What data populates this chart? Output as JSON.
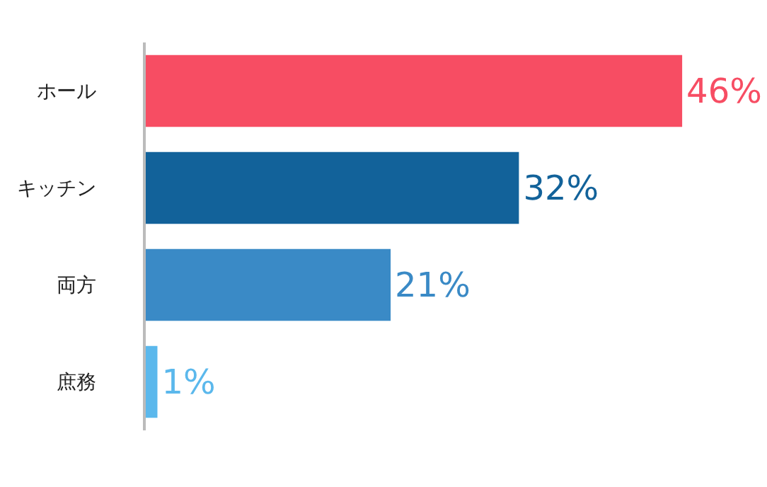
{
  "chart_data": {
    "type": "bar",
    "orientation": "horizontal",
    "categories": [
      "ホール",
      "キッチン",
      "両方",
      "庶務"
    ],
    "values": [
      46,
      32,
      21,
      1
    ],
    "colors": [
      "#f74d63",
      "#12629a",
      "#3a8ac6",
      "#5bb8ec"
    ],
    "value_labels": [
      "46%",
      "32%",
      "21%",
      "1%"
    ],
    "tick_labels": "y",
    "legend": false
  }
}
